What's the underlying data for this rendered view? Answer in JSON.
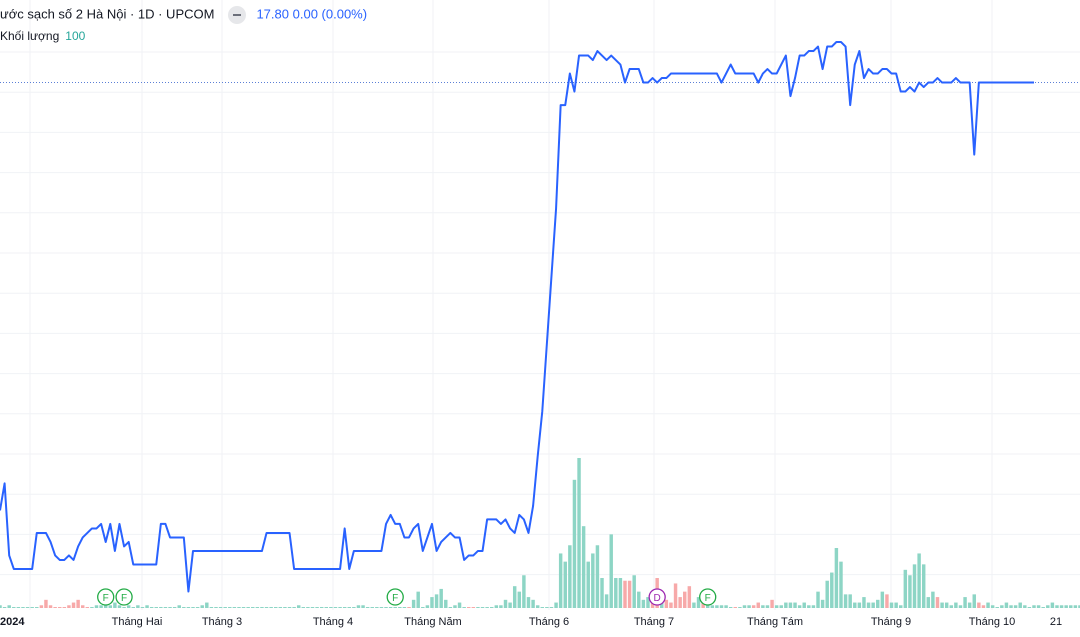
{
  "header": {
    "title": "ước sạch số 2 Hà Nội · 1D · UPCOM",
    "price": "17.80",
    "change": "0.00 (0.00%)"
  },
  "volume_legend": {
    "label": "Khối lượng",
    "value": "100"
  },
  "colors": {
    "line": "#2962ff",
    "vol_up": "#8dd5c5",
    "vol_down": "#f7a9a9",
    "grid": "#f0f2f6",
    "last_price_line": "#5b7fd6",
    "event_f": "#22ab45",
    "event_d": "#9c27b0"
  },
  "chart_data": {
    "type": "line",
    "title": "ước sạch số 2 Hà Nội · 1D · UPCOM",
    "x_axis_labels": [
      "2024",
      "Tháng Hai",
      "Tháng 3",
      "Tháng 4",
      "Tháng Năm",
      "Tháng 6",
      "Tháng 7",
      "Tháng Tám",
      "Tháng 9",
      "Tháng 10",
      "21"
    ],
    "ylim": [
      6.2,
      19.3
    ],
    "last_price": 17.8,
    "series": [
      {
        "y": [
          8.3,
          8.9,
          7.3,
          7.0,
          7.0,
          7.0,
          7.0,
          7.0,
          7.8,
          7.8,
          7.8,
          7.6,
          7.3,
          7.2,
          7.2,
          7.3,
          7.2,
          7.5,
          7.7,
          7.8,
          7.9,
          7.9,
          8.0,
          7.6,
          8.0,
          7.4,
          8.0,
          7.5,
          7.6,
          7.1,
          7.1,
          7.1,
          7.1,
          7.1,
          7.1,
          8.0,
          8.0,
          7.7,
          7.7,
          7.7,
          7.7,
          6.5,
          7.4,
          7.4,
          7.4,
          7.4,
          7.4,
          7.4,
          7.4,
          7.4,
          7.4,
          7.4,
          7.4,
          7.4,
          7.4,
          7.4,
          7.4,
          7.4,
          7.8,
          7.8,
          7.8,
          7.8,
          7.8,
          7.8,
          7.0,
          7.0,
          7.0,
          7.0,
          7.0,
          7.0,
          7.0,
          7.0,
          7.0,
          7.0,
          7.0,
          7.9,
          7.0,
          7.4,
          7.4,
          7.4,
          7.4,
          7.4,
          7.4,
          7.4,
          8.0,
          8.2,
          8.0,
          8.0,
          7.7,
          7.7,
          7.9,
          8.0,
          7.4,
          7.7,
          8.0,
          7.4,
          7.6,
          7.7,
          7.8,
          7.7,
          7.7,
          7.2,
          7.3,
          7.3,
          7.4,
          7.4,
          8.1,
          8.1,
          8.1,
          8.0,
          8.1,
          7.9,
          7.8,
          8.2,
          8.1,
          7.8,
          8.4,
          9.5,
          10.5,
          12.0,
          13.5,
          15.0,
          17.3,
          17.3,
          18.0,
          17.6,
          18.4,
          18.4,
          18.4,
          18.3,
          18.5,
          18.4,
          18.3,
          18.4,
          18.3,
          18.2,
          17.8,
          18.1,
          18.1,
          18.1,
          17.8,
          17.8,
          17.9,
          17.8,
          17.9,
          17.9,
          18.0,
          18.0,
          18.0,
          18.0,
          18.0,
          18.0,
          18.0,
          18.0,
          18.0,
          18.0,
          18.0,
          17.8,
          18.0,
          18.2,
          18.0,
          18.0,
          18.0,
          18.0,
          18.0,
          17.8,
          18.0,
          18.1,
          18.0,
          18.0,
          18.2,
          18.4,
          17.5,
          17.9,
          18.4,
          18.4,
          18.5,
          18.5,
          18.6,
          18.1,
          18.6,
          18.6,
          18.7,
          18.7,
          18.6,
          17.3,
          18.2,
          18.5,
          17.9,
          18.1,
          18.0,
          18.0,
          18.1,
          18.1,
          18.0,
          18.0,
          17.6,
          17.6,
          17.7,
          17.6,
          17.8,
          17.7,
          17.8,
          17.8,
          17.9,
          17.8,
          17.8,
          17.8,
          17.9,
          17.8,
          17.8,
          17.8,
          16.2,
          17.8,
          17.8,
          17.8,
          17.8,
          17.8,
          17.8,
          17.8,
          17.8,
          17.8,
          17.8,
          17.8,
          17.8,
          17.8
        ]
      }
    ],
    "volume": [
      {
        "values": [
          1,
          0,
          1,
          0,
          0,
          0,
          0,
          0,
          0,
          1,
          3,
          1,
          0,
          0,
          0,
          1,
          2,
          3,
          1,
          0,
          0,
          1,
          1,
          1,
          1,
          2,
          1,
          0,
          1,
          0,
          1,
          0,
          1,
          0,
          0,
          0,
          0,
          0,
          0,
          1,
          0,
          0,
          0,
          0,
          1,
          2,
          0,
          0,
          0,
          0,
          0,
          0,
          0,
          0,
          0,
          0,
          0,
          0,
          0,
          0,
          0,
          0,
          0,
          0,
          0,
          1,
          0,
          0,
          0,
          0,
          0,
          0,
          0,
          0,
          0,
          0,
          0,
          0,
          1,
          1,
          0,
          0,
          0,
          0,
          0,
          0,
          0,
          0,
          0,
          0,
          3,
          6,
          0,
          1,
          4,
          5,
          7,
          3,
          0,
          1,
          2,
          0,
          0,
          0,
          0,
          0,
          0,
          0,
          1,
          1,
          3,
          2,
          8,
          6,
          12,
          4,
          3,
          1,
          0,
          0,
          0,
          2,
          20,
          17,
          23,
          47,
          55,
          30,
          17,
          20,
          23,
          11,
          5,
          27,
          11,
          11,
          10,
          10,
          12,
          6,
          3,
          4,
          5,
          11,
          6,
          3,
          2,
          9,
          4,
          6,
          8,
          2,
          4,
          3,
          2,
          1,
          1,
          1,
          1,
          0,
          0,
          0,
          1,
          1,
          1,
          2,
          1,
          1,
          3,
          1,
          1,
          2,
          2,
          2,
          1,
          2,
          1,
          1,
          6,
          3,
          10,
          13,
          22,
          17,
          5,
          5,
          2,
          2,
          4,
          2,
          2,
          3,
          6,
          5,
          2,
          2,
          1,
          14,
          12,
          16,
          20,
          16,
          4,
          6,
          4,
          2,
          2,
          1,
          2,
          1,
          4,
          2,
          5,
          2,
          1,
          2,
          1,
          0,
          1,
          2,
          1,
          1,
          2,
          1,
          0,
          1,
          1,
          0,
          1,
          2,
          1,
          1,
          1,
          1,
          1,
          1,
          1,
          1,
          1,
          2,
          1,
          0
        ],
        "down": [
          9,
          10,
          11,
          12,
          13,
          14,
          15,
          16,
          17,
          18,
          19,
          89,
          102,
          103,
          136,
          137,
          142,
          143,
          145,
          146,
          147,
          148,
          149,
          150,
          153,
          160,
          164,
          165,
          168,
          193,
          204,
          213,
          214
        ]
      }
    ],
    "events": [
      {
        "label": "F",
        "index": 23
      },
      {
        "label": "F",
        "index": 27
      },
      {
        "label": "F",
        "index": 86
      },
      {
        "label": "D",
        "index": 143
      },
      {
        "label": "F",
        "index": 154
      }
    ]
  }
}
